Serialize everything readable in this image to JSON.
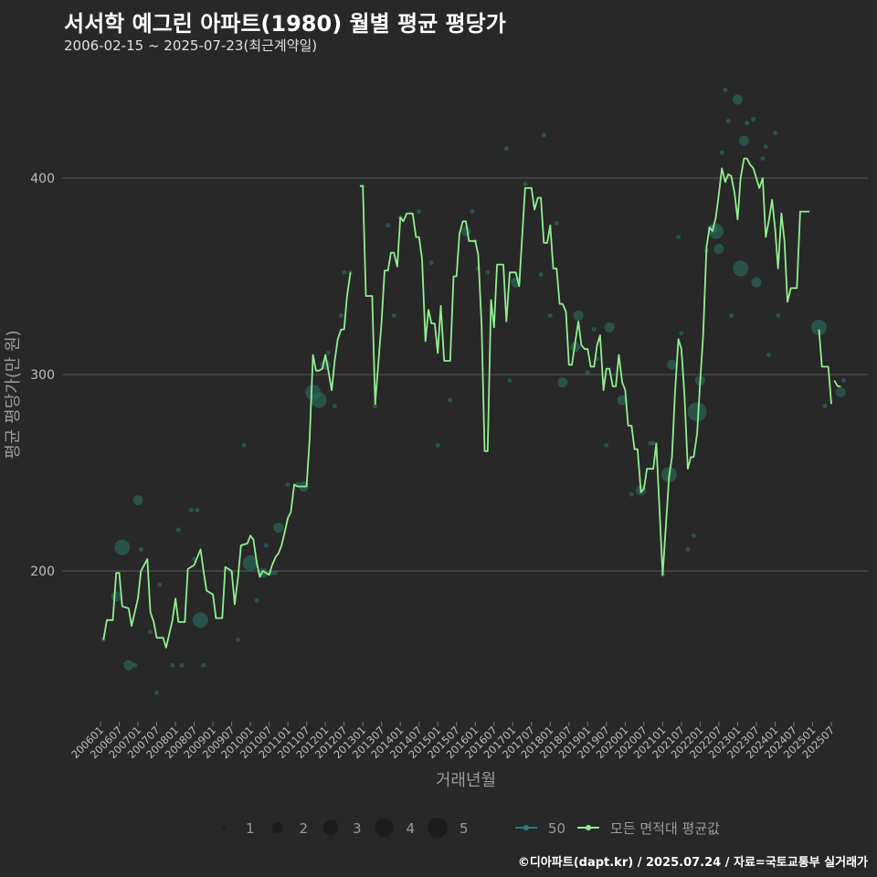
{
  "header": {
    "title": "서서학 예그린 아파트(1980) 월별 평균 평당가",
    "subtitle": "2006-02-15 ~ 2025-07-23(최근계약일)"
  },
  "caption": "©디아파트(dapt.kr) / 2025.07.24 / 자료=국토교통부 실거래가",
  "colors": {
    "background": "#282828",
    "grid": "#5a5a5a",
    "line": "#90ee90",
    "bubble": "#2a7060",
    "series50": "#2a7e7e"
  },
  "chart_data": {
    "type": "line",
    "xlabel": "거래년월",
    "ylabel": "평균 평당가(만 원)",
    "ylim": [
      130,
      450
    ],
    "yticks": [
      200,
      300,
      400
    ],
    "xticks": [
      "200601",
      "200607",
      "200701",
      "200707",
      "200801",
      "200807",
      "200901",
      "200907",
      "201001",
      "201007",
      "201101",
      "201107",
      "201201",
      "201207",
      "201301",
      "201307",
      "201401",
      "201407",
      "201501",
      "201507",
      "201601",
      "201607",
      "201701",
      "201707",
      "201801",
      "201807",
      "201901",
      "201907",
      "202001",
      "202007",
      "202101",
      "202107",
      "202201",
      "202207",
      "202301",
      "202307",
      "202401",
      "202407",
      "202501",
      "202507"
    ],
    "legend": {
      "sizes": [
        "1",
        "2",
        "3",
        "4",
        "5"
      ],
      "series": [
        {
          "name": "50",
          "color": "#2a7e7e"
        },
        {
          "name": "모든 면적대 평균값",
          "color": "#90ee90"
        }
      ]
    },
    "line_segments": [
      [
        [
          2006.08,
          165
        ],
        [
          2006.17,
          175
        ],
        [
          2006.33,
          175
        ],
        [
          2006.42,
          199
        ],
        [
          2006.5,
          199
        ],
        [
          2006.58,
          182
        ],
        [
          2006.75,
          181
        ],
        [
          2006.83,
          172
        ],
        [
          2007.0,
          186
        ],
        [
          2007.08,
          200
        ],
        [
          2007.25,
          206
        ],
        [
          2007.33,
          179
        ],
        [
          2007.42,
          174
        ],
        [
          2007.5,
          166
        ],
        [
          2007.67,
          166
        ],
        [
          2007.75,
          161
        ],
        [
          2007.92,
          175
        ],
        [
          2008.0,
          186
        ],
        [
          2008.08,
          174
        ],
        [
          2008.25,
          174
        ],
        [
          2008.33,
          201
        ],
        [
          2008.5,
          203
        ],
        [
          2008.67,
          211
        ],
        [
          2008.75,
          200
        ],
        [
          2008.83,
          190
        ],
        [
          2009.0,
          188
        ],
        [
          2009.08,
          176
        ],
        [
          2009.25,
          176
        ],
        [
          2009.33,
          202
        ],
        [
          2009.5,
          200
        ],
        [
          2009.58,
          183
        ],
        [
          2009.67,
          197
        ],
        [
          2009.75,
          213
        ],
        [
          2009.92,
          214
        ],
        [
          2010.0,
          218
        ],
        [
          2010.08,
          216
        ],
        [
          2010.17,
          204
        ],
        [
          2010.25,
          197
        ],
        [
          2010.33,
          200
        ],
        [
          2010.42,
          199
        ],
        [
          2010.5,
          198
        ],
        [
          2010.58,
          203
        ],
        [
          2010.67,
          207
        ],
        [
          2010.75,
          209
        ],
        [
          2010.83,
          213
        ],
        [
          2010.92,
          220
        ],
        [
          2011.0,
          227
        ],
        [
          2011.08,
          230
        ],
        [
          2011.17,
          244
        ],
        [
          2011.25,
          243
        ],
        [
          2011.5,
          243
        ],
        [
          2011.58,
          267
        ],
        [
          2011.67,
          310
        ],
        [
          2011.75,
          302
        ],
        [
          2011.83,
          302
        ],
        [
          2011.92,
          303
        ],
        [
          2012.0,
          310
        ],
        [
          2012.08,
          302
        ],
        [
          2012.17,
          292
        ],
        [
          2012.25,
          307
        ],
        [
          2012.33,
          318
        ],
        [
          2012.42,
          323
        ],
        [
          2012.5,
          323
        ],
        [
          2012.58,
          340
        ],
        [
          2012.67,
          352
        ]
      ],
      [
        [
          2012.92,
          396
        ],
        [
          2013.0,
          396
        ],
        [
          2013.08,
          340
        ],
        [
          2013.25,
          340
        ],
        [
          2013.33,
          285
        ],
        [
          2013.5,
          327
        ],
        [
          2013.58,
          353
        ],
        [
          2013.67,
          353
        ],
        [
          2013.75,
          362
        ],
        [
          2013.83,
          362
        ],
        [
          2013.92,
          355
        ],
        [
          2014.0,
          380
        ],
        [
          2014.08,
          378
        ],
        [
          2014.17,
          382
        ],
        [
          2014.33,
          382
        ],
        [
          2014.42,
          370
        ],
        [
          2014.5,
          370
        ],
        [
          2014.58,
          359
        ],
        [
          2014.67,
          317
        ],
        [
          2014.75,
          333
        ],
        [
          2014.83,
          326
        ],
        [
          2014.92,
          326
        ],
        [
          2015.0,
          311
        ],
        [
          2015.08,
          335
        ],
        [
          2015.17,
          307
        ],
        [
          2015.33,
          307
        ],
        [
          2015.42,
          350
        ],
        [
          2015.5,
          350
        ],
        [
          2015.58,
          372
        ],
        [
          2015.67,
          378
        ],
        [
          2015.75,
          378
        ],
        [
          2015.83,
          368
        ],
        [
          2016.0,
          368
        ],
        [
          2016.08,
          361
        ],
        [
          2016.17,
          325
        ],
        [
          2016.25,
          261
        ],
        [
          2016.33,
          261
        ],
        [
          2016.42,
          338
        ],
        [
          2016.5,
          324
        ],
        [
          2016.58,
          356
        ],
        [
          2016.75,
          356
        ],
        [
          2016.83,
          327
        ],
        [
          2016.92,
          352
        ],
        [
          2017.08,
          352
        ],
        [
          2017.17,
          345
        ],
        [
          2017.33,
          395
        ],
        [
          2017.5,
          395
        ],
        [
          2017.58,
          384
        ],
        [
          2017.67,
          390
        ],
        [
          2017.75,
          390
        ],
        [
          2017.83,
          367
        ],
        [
          2017.92,
          367
        ],
        [
          2018.0,
          376
        ],
        [
          2018.08,
          354
        ],
        [
          2018.17,
          354
        ],
        [
          2018.25,
          336
        ],
        [
          2018.33,
          336
        ],
        [
          2018.42,
          332
        ],
        [
          2018.5,
          305
        ],
        [
          2018.58,
          305
        ],
        [
          2018.67,
          317
        ],
        [
          2018.75,
          327
        ],
        [
          2018.83,
          315
        ],
        [
          2018.92,
          313
        ],
        [
          2019.0,
          313
        ],
        [
          2019.08,
          304
        ],
        [
          2019.17,
          304
        ],
        [
          2019.25,
          315
        ],
        [
          2019.33,
          320
        ],
        [
          2019.42,
          292
        ],
        [
          2019.5,
          303
        ],
        [
          2019.58,
          303
        ],
        [
          2019.67,
          294
        ],
        [
          2019.75,
          294
        ],
        [
          2019.83,
          310
        ],
        [
          2019.92,
          296
        ],
        [
          2020.0,
          292
        ],
        [
          2020.08,
          274
        ],
        [
          2020.17,
          274
        ],
        [
          2020.25,
          262
        ],
        [
          2020.33,
          262
        ],
        [
          2020.42,
          240
        ],
        [
          2020.5,
          242
        ],
        [
          2020.58,
          252
        ],
        [
          2020.67,
          252
        ],
        [
          2020.75,
          252
        ],
        [
          2020.83,
          265
        ],
        [
          2021.0,
          198
        ],
        [
          2021.17,
          248
        ],
        [
          2021.25,
          258
        ],
        [
          2021.33,
          291
        ],
        [
          2021.42,
          318
        ],
        [
          2021.5,
          313
        ],
        [
          2021.58,
          290
        ],
        [
          2021.67,
          252
        ],
        [
          2021.75,
          258
        ],
        [
          2021.83,
          258
        ],
        [
          2021.92,
          270
        ],
        [
          2022.0,
          296
        ],
        [
          2022.08,
          320
        ],
        [
          2022.17,
          365
        ],
        [
          2022.25,
          375
        ],
        [
          2022.33,
          373
        ],
        [
          2022.42,
          380
        ],
        [
          2022.5,
          392
        ],
        [
          2022.58,
          405
        ],
        [
          2022.67,
          398
        ],
        [
          2022.75,
          402
        ],
        [
          2022.83,
          401
        ],
        [
          2022.92,
          392
        ],
        [
          2023.0,
          379
        ],
        [
          2023.08,
          400
        ],
        [
          2023.17,
          410
        ],
        [
          2023.25,
          410
        ],
        [
          2023.33,
          407
        ],
        [
          2023.42,
          405
        ],
        [
          2023.5,
          400
        ],
        [
          2023.58,
          395
        ],
        [
          2023.67,
          400
        ],
        [
          2023.75,
          370
        ],
        [
          2023.83,
          378
        ],
        [
          2023.92,
          389
        ],
        [
          2024.0,
          374
        ],
        [
          2024.08,
          354
        ],
        [
          2024.17,
          382
        ],
        [
          2024.25,
          368
        ],
        [
          2024.33,
          337
        ],
        [
          2024.42,
          344
        ],
        [
          2024.58,
          344
        ],
        [
          2024.67,
          383
        ],
        [
          2024.75,
          383
        ],
        [
          2024.83,
          383
        ],
        [
          2024.92,
          383
        ]
      ],
      [
        [
          2025.17,
          323
        ],
        [
          2025.25,
          304
        ],
        [
          2025.42,
          304
        ],
        [
          2025.5,
          285
        ]
      ],
      [
        [
          2025.58,
          297
        ],
        [
          2025.67,
          294
        ],
        [
          2025.75,
          294
        ]
      ]
    ],
    "bubbles": [
      [
        2006.08,
        165,
        1
      ],
      [
        2006.42,
        187,
        2
      ],
      [
        2006.58,
        212,
        3
      ],
      [
        2006.75,
        152,
        2
      ],
      [
        2006.92,
        152,
        1
      ],
      [
        2007.0,
        236,
        2
      ],
      [
        2007.08,
        211,
        1
      ],
      [
        2007.33,
        169,
        1
      ],
      [
        2007.5,
        138,
        1
      ],
      [
        2007.58,
        193,
        1
      ],
      [
        2007.92,
        152,
        1
      ],
      [
        2008.08,
        221,
        1
      ],
      [
        2008.17,
        152,
        1
      ],
      [
        2008.42,
        231,
        1
      ],
      [
        2008.5,
        206,
        1
      ],
      [
        2008.58,
        231,
        1
      ],
      [
        2008.67,
        175,
        3
      ],
      [
        2008.75,
        152,
        1
      ],
      [
        2009.5,
        199,
        1
      ],
      [
        2009.67,
        165,
        1
      ],
      [
        2009.83,
        264,
        1
      ],
      [
        2010.0,
        204,
        3
      ],
      [
        2010.17,
        185,
        1
      ],
      [
        2010.33,
        199,
        2
      ],
      [
        2010.42,
        213,
        1
      ],
      [
        2010.58,
        199,
        1
      ],
      [
        2010.67,
        199,
        1
      ],
      [
        2010.75,
        222,
        2
      ],
      [
        2011.0,
        244,
        1
      ],
      [
        2011.25,
        244,
        1
      ],
      [
        2011.42,
        243,
        2
      ],
      [
        2011.67,
        291,
        3
      ],
      [
        2011.83,
        287,
        3
      ],
      [
        2012.0,
        305,
        2
      ],
      [
        2012.08,
        311,
        1
      ],
      [
        2012.25,
        284,
        1
      ],
      [
        2012.42,
        330,
        1
      ],
      [
        2012.5,
        352,
        1
      ],
      [
        2012.67,
        352,
        1
      ],
      [
        2013.0,
        396,
        1
      ],
      [
        2013.33,
        284,
        1
      ],
      [
        2013.67,
        376,
        1
      ],
      [
        2013.83,
        330,
        1
      ],
      [
        2014.0,
        380,
        1
      ],
      [
        2014.5,
        383,
        1
      ],
      [
        2014.83,
        357,
        1
      ],
      [
        2015.0,
        264,
        1
      ],
      [
        2015.33,
        287,
        1
      ],
      [
        2015.75,
        373,
        2
      ],
      [
        2015.92,
        383,
        1
      ],
      [
        2016.0,
        368,
        1
      ],
      [
        2016.08,
        354,
        1
      ],
      [
        2016.33,
        352,
        1
      ],
      [
        2016.83,
        415,
        1
      ],
      [
        2016.92,
        297,
        1
      ],
      [
        2017.08,
        347,
        2
      ],
      [
        2017.33,
        397,
        1
      ],
      [
        2017.75,
        351,
        1
      ],
      [
        2017.83,
        422,
        1
      ],
      [
        2018.0,
        330,
        1
      ],
      [
        2018.17,
        377,
        1
      ],
      [
        2018.33,
        296,
        2
      ],
      [
        2018.67,
        314,
        2
      ],
      [
        2018.75,
        330,
        2
      ],
      [
        2019.0,
        301,
        1
      ],
      [
        2019.17,
        323,
        1
      ],
      [
        2019.25,
        308,
        1
      ],
      [
        2019.5,
        264,
        1
      ],
      [
        2019.58,
        324,
        2
      ],
      [
        2019.92,
        287,
        2
      ],
      [
        2020.17,
        239,
        1
      ],
      [
        2020.42,
        241,
        2
      ],
      [
        2020.67,
        265,
        1
      ],
      [
        2020.75,
        265,
        1
      ],
      [
        2021.0,
        198,
        1
      ],
      [
        2021.17,
        249,
        3
      ],
      [
        2021.25,
        305,
        2
      ],
      [
        2021.42,
        370,
        1
      ],
      [
        2021.5,
        321,
        1
      ],
      [
        2021.67,
        211,
        1
      ],
      [
        2021.83,
        218,
        1
      ],
      [
        2021.92,
        281,
        4
      ],
      [
        2022.0,
        297,
        2
      ],
      [
        2022.17,
        363,
        1
      ],
      [
        2022.33,
        374,
        2
      ],
      [
        2022.42,
        373,
        3
      ],
      [
        2022.5,
        364,
        2
      ],
      [
        2022.58,
        413,
        1
      ],
      [
        2022.67,
        445,
        1
      ],
      [
        2022.75,
        429,
        1
      ],
      [
        2022.83,
        330,
        1
      ],
      [
        2023.0,
        440,
        2
      ],
      [
        2023.08,
        354,
        3
      ],
      [
        2023.17,
        419,
        2
      ],
      [
        2023.25,
        428,
        1
      ],
      [
        2023.42,
        430,
        1
      ],
      [
        2023.5,
        347,
        2
      ],
      [
        2023.67,
        410,
        1
      ],
      [
        2023.75,
        416,
        1
      ],
      [
        2023.83,
        310,
        1
      ],
      [
        2024.0,
        423,
        1
      ],
      [
        2024.08,
        330,
        1
      ],
      [
        2025.17,
        324,
        3
      ],
      [
        2025.33,
        284,
        1
      ],
      [
        2025.75,
        291,
        2
      ],
      [
        2025.83,
        297,
        1
      ]
    ]
  }
}
